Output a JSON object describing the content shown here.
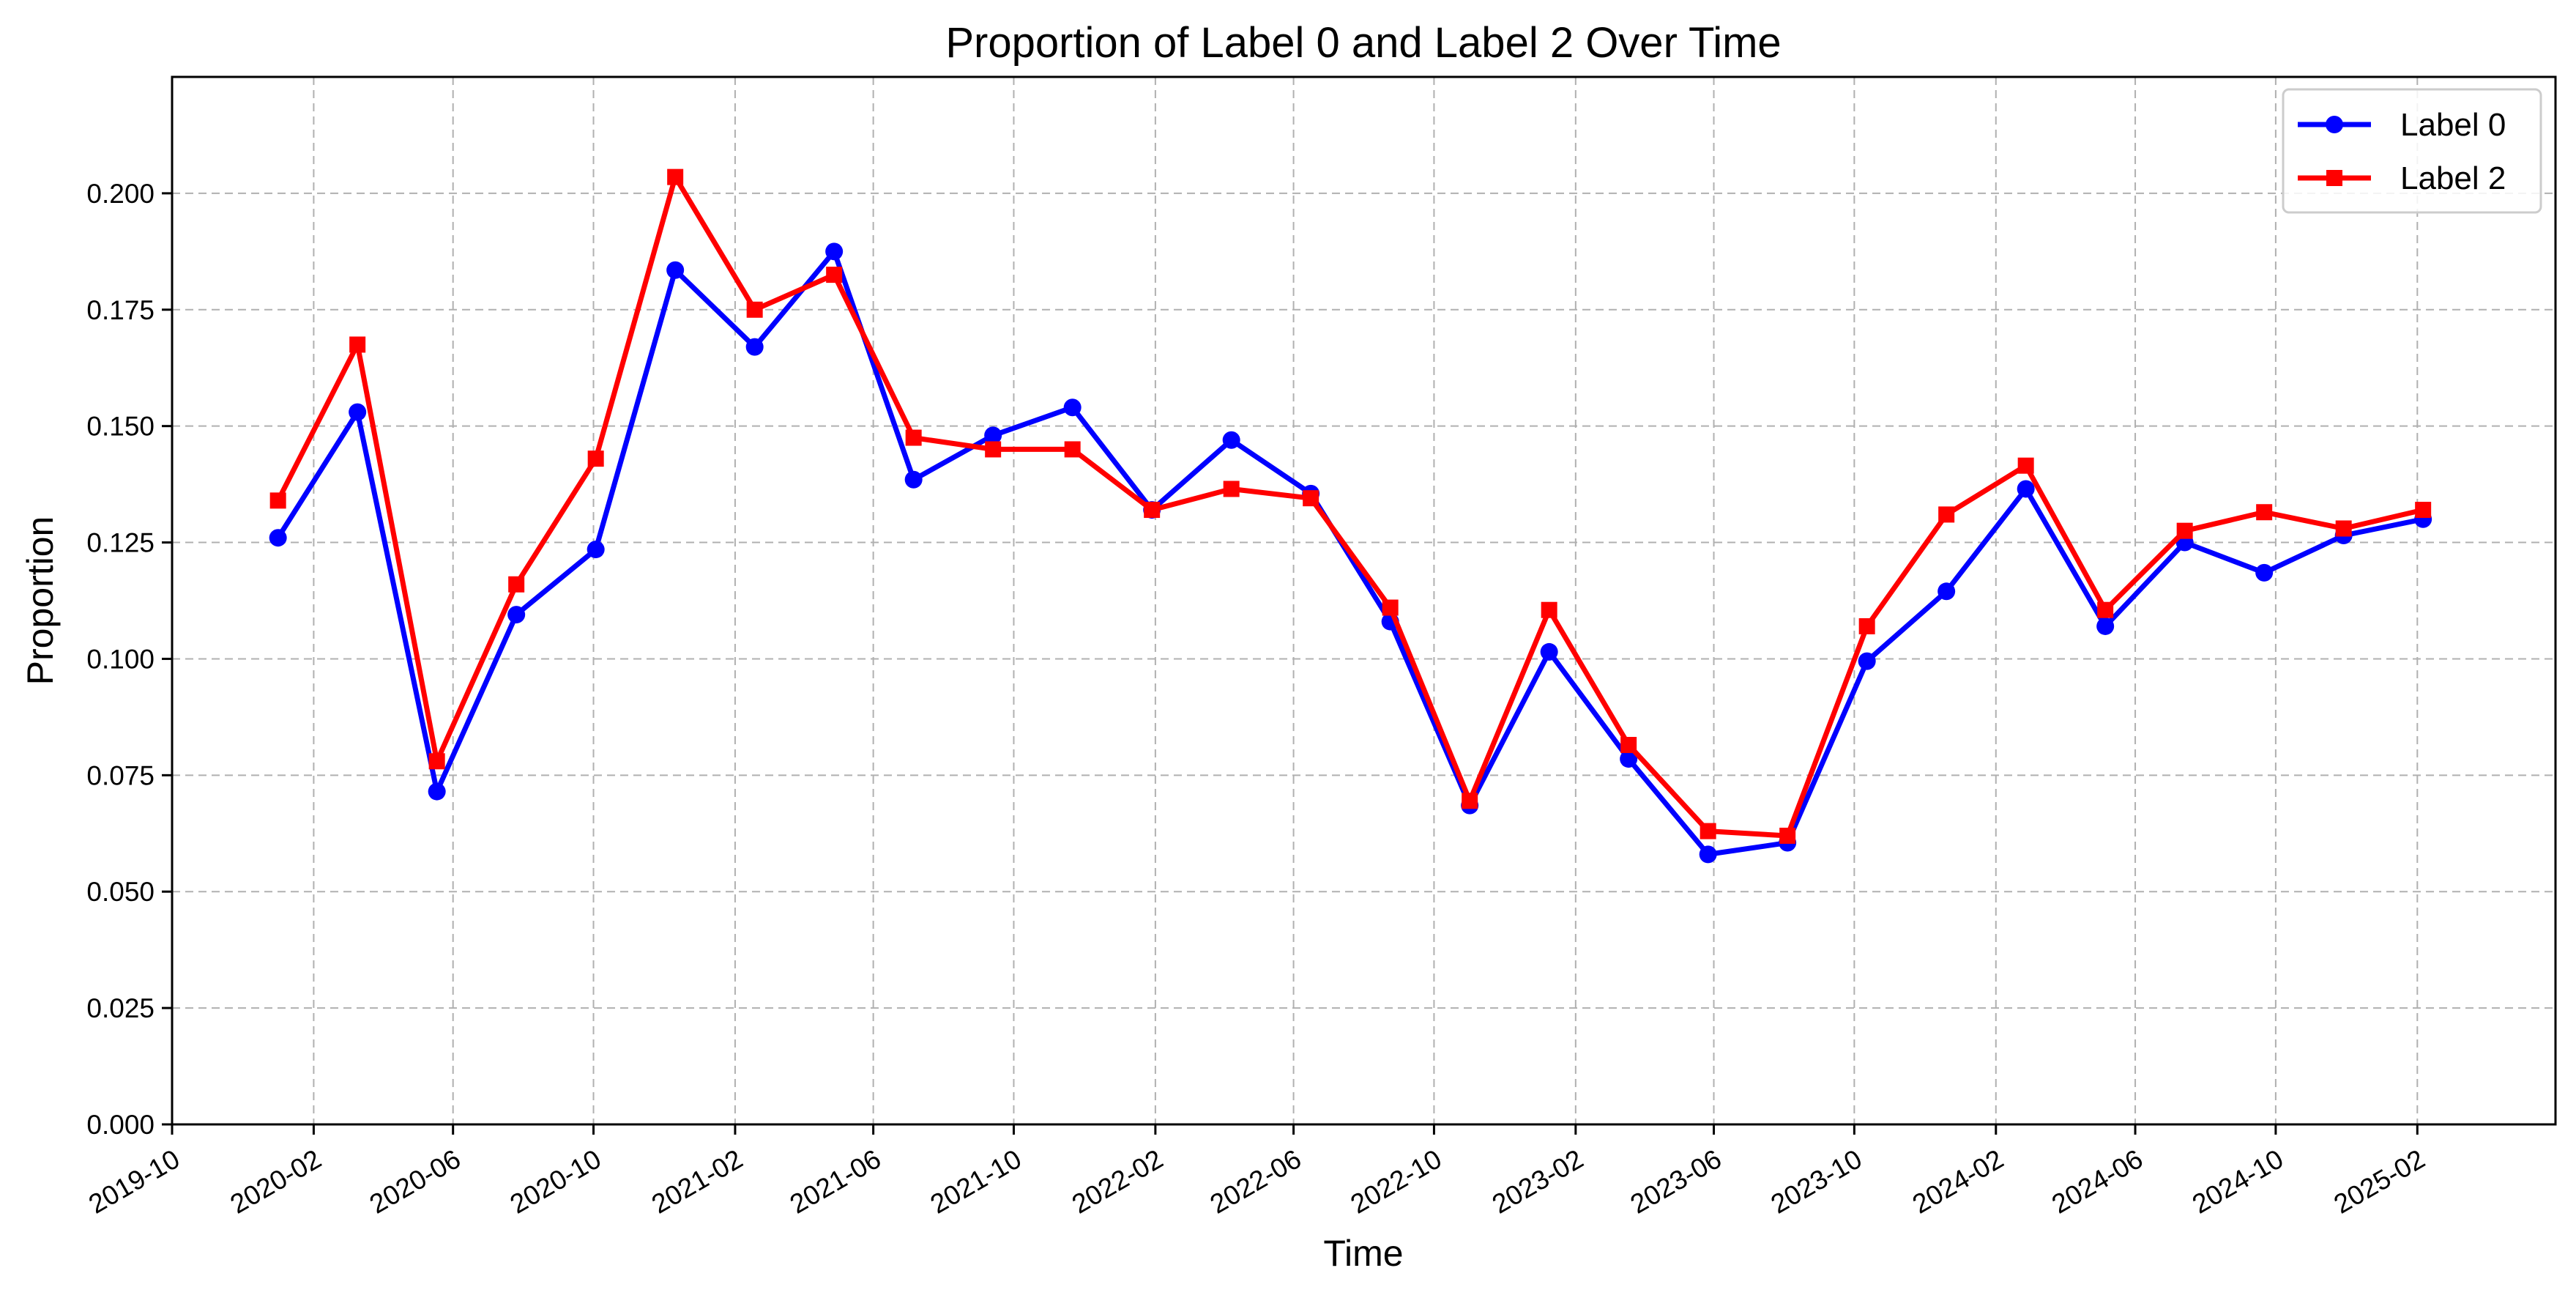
{
  "chart_data": {
    "type": "line",
    "title": "Proportion of Label 0 and Label 2 Over Time",
    "xlabel": "Time",
    "ylabel": "Proportion",
    "xlim": [
      "2019-10-01",
      "2025-06-01"
    ],
    "ylim": [
      0,
      0.225
    ],
    "x_ticks": [
      "2019-10",
      "2020-02",
      "2020-06",
      "2020-10",
      "2021-02",
      "2021-06",
      "2021-10",
      "2022-02",
      "2022-06",
      "2022-10",
      "2023-02",
      "2023-06",
      "2023-10",
      "2024-02",
      "2024-06",
      "2024-10",
      "2025-02"
    ],
    "y_ticks": [
      "0.000",
      "0.025",
      "0.050",
      "0.075",
      "0.100",
      "0.125",
      "0.150",
      "0.175",
      "0.200"
    ],
    "grid": true,
    "legend_position": "top-right",
    "x": [
      "2020-01-01",
      "2020-03-10",
      "2020-05-18",
      "2020-07-26",
      "2020-10-03",
      "2020-12-11",
      "2021-02-18",
      "2021-04-28",
      "2021-07-06",
      "2021-09-13",
      "2021-11-21",
      "2022-01-29",
      "2022-04-08",
      "2022-06-16",
      "2022-08-24",
      "2022-11-01",
      "2023-01-09",
      "2023-03-19",
      "2023-05-27",
      "2023-08-04",
      "2023-10-12",
      "2023-12-20",
      "2024-02-27",
      "2024-05-06",
      "2024-07-14",
      "2024-09-21",
      "2024-11-29",
      "2025-02-06"
    ],
    "series": [
      {
        "name": "Label 0",
        "color": "#0000ff",
        "marker": "circle",
        "values": [
          0.126,
          0.153,
          0.0715,
          0.1095,
          0.1235,
          0.1835,
          0.167,
          0.1875,
          0.1385,
          0.148,
          0.154,
          0.132,
          0.147,
          0.1355,
          0.108,
          0.0685,
          0.1015,
          0.0785,
          0.058,
          0.0605,
          0.0995,
          0.1145,
          0.1365,
          0.107,
          0.125,
          0.1185,
          0.1265,
          0.13
        ]
      },
      {
        "name": "Label 2",
        "color": "#ff0000",
        "marker": "square",
        "values": [
          0.134,
          0.1675,
          0.078,
          0.116,
          0.143,
          0.2035,
          0.175,
          0.1825,
          0.1475,
          0.145,
          0.145,
          0.132,
          0.1365,
          0.1345,
          0.111,
          0.0695,
          0.1105,
          0.0815,
          0.063,
          0.062,
          0.107,
          0.131,
          0.1415,
          0.1105,
          0.1275,
          0.1315,
          0.128,
          0.132
        ]
      }
    ]
  }
}
